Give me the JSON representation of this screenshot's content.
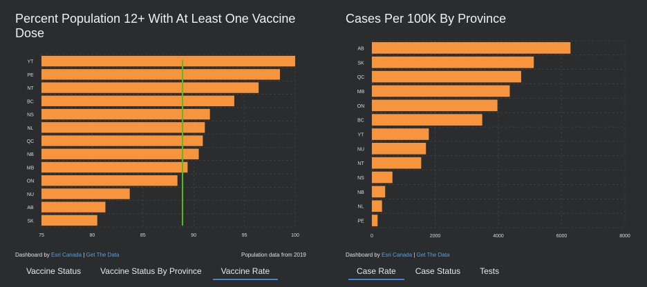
{
  "left": {
    "title": "Percent Population 12+ With At Least One Vaccine Dose",
    "footer": {
      "prefix": "Dashboard by",
      "esri_link": "Esri Canada",
      "separator": "|",
      "data_link": "Get The Data"
    },
    "note": "Population data from 2019",
    "tabs": [
      {
        "label": "Vaccine Status",
        "active": false
      },
      {
        "label": "Vaccine Status By Province",
        "active": false
      },
      {
        "label": "Vaccine Rate",
        "active": true
      }
    ]
  },
  "right": {
    "title": "Cases Per 100K By Province",
    "footer": {
      "prefix": "Dashboard by",
      "esri_link": "Esri Canada",
      "separator": "|",
      "data_link": "Get The Data"
    },
    "tabs": [
      {
        "label": "Case Rate",
        "active": true
      },
      {
        "label": "Case Status",
        "active": false
      },
      {
        "label": "Tests",
        "active": false
      }
    ]
  },
  "colors": {
    "bar": "#f7953f",
    "target_line": "#4cc21b",
    "tab_underline": "#3b86d9",
    "link": "#5aa0e0",
    "grid": "#4a4b4e"
  },
  "chart_data": [
    {
      "type": "bar",
      "orientation": "horizontal",
      "title": "Percent Population 12+ With At Least One Vaccine Dose",
      "categories": [
        "YT",
        "PE",
        "NT",
        "BC",
        "NS",
        "NL",
        "QC",
        "NB",
        "MB",
        "ON",
        "NU",
        "AB",
        "SK"
      ],
      "values": [
        100.0,
        98.5,
        96.4,
        94.0,
        91.6,
        91.1,
        90.9,
        90.5,
        89.4,
        88.4,
        83.7,
        81.3,
        80.5
      ],
      "xlim": [
        75,
        100
      ],
      "xticks": [
        75,
        80,
        85,
        90,
        95,
        100
      ],
      "reference_line": 88.9,
      "grid": true
    },
    {
      "type": "bar",
      "orientation": "horizontal",
      "title": "Cases Per 100K By Province",
      "categories": [
        "AB",
        "SK",
        "QC",
        "MB",
        "ON",
        "BC",
        "YT",
        "NU",
        "NT",
        "NS",
        "NB",
        "NL",
        "PE"
      ],
      "values": [
        6280,
        5120,
        4720,
        4360,
        3970,
        3490,
        1800,
        1710,
        1560,
        650,
        420,
        320,
        180
      ],
      "xlim": [
        0,
        8000
      ],
      "xticks": [
        0,
        2000,
        4000,
        6000,
        8000
      ],
      "grid": true
    }
  ]
}
